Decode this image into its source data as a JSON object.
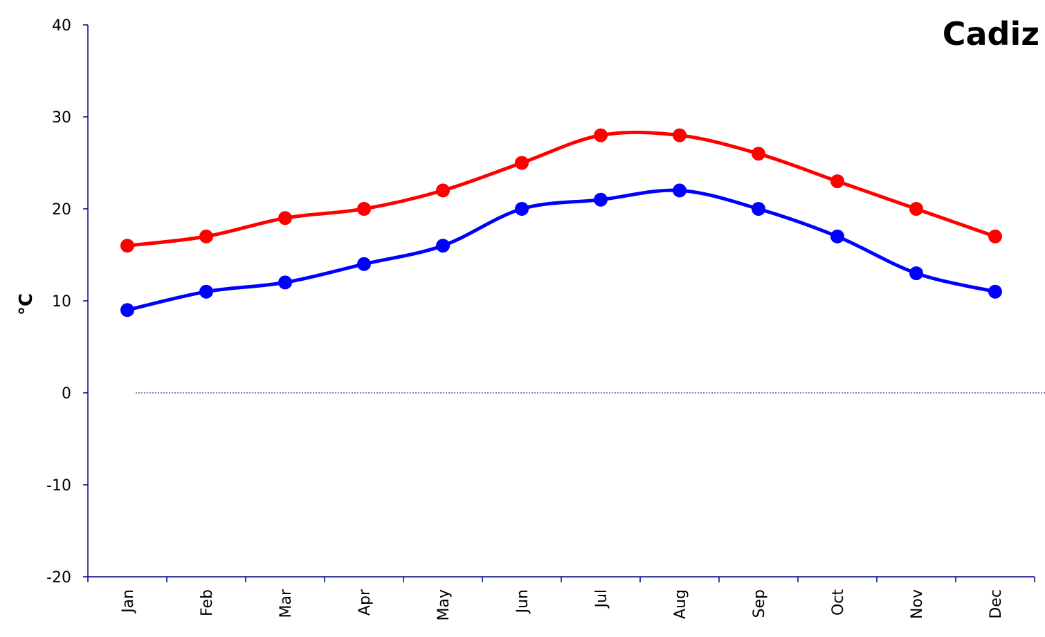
{
  "chart_data": {
    "type": "line",
    "title": "Cadiz",
    "xlabel": "",
    "ylabel": "°C",
    "ylim": [
      -20,
      40
    ],
    "yticks": [
      40,
      30,
      20,
      10,
      0,
      -10,
      -20
    ],
    "categories": [
      "Jan",
      "Feb",
      "Mar",
      "Apr",
      "May",
      "Jun",
      "Jul",
      "Aug",
      "Sep",
      "Oct",
      "Nov",
      "Dec"
    ],
    "grid": false,
    "zero_line": true,
    "series": [
      {
        "color": "#ff0000",
        "values": [
          16,
          17,
          19,
          20,
          22,
          25,
          28,
          28,
          26,
          23,
          20,
          17
        ]
      },
      {
        "color": "#0000ff",
        "values": [
          9,
          11,
          12,
          14,
          16,
          20,
          21,
          22,
          20,
          17,
          13,
          11
        ]
      }
    ]
  }
}
